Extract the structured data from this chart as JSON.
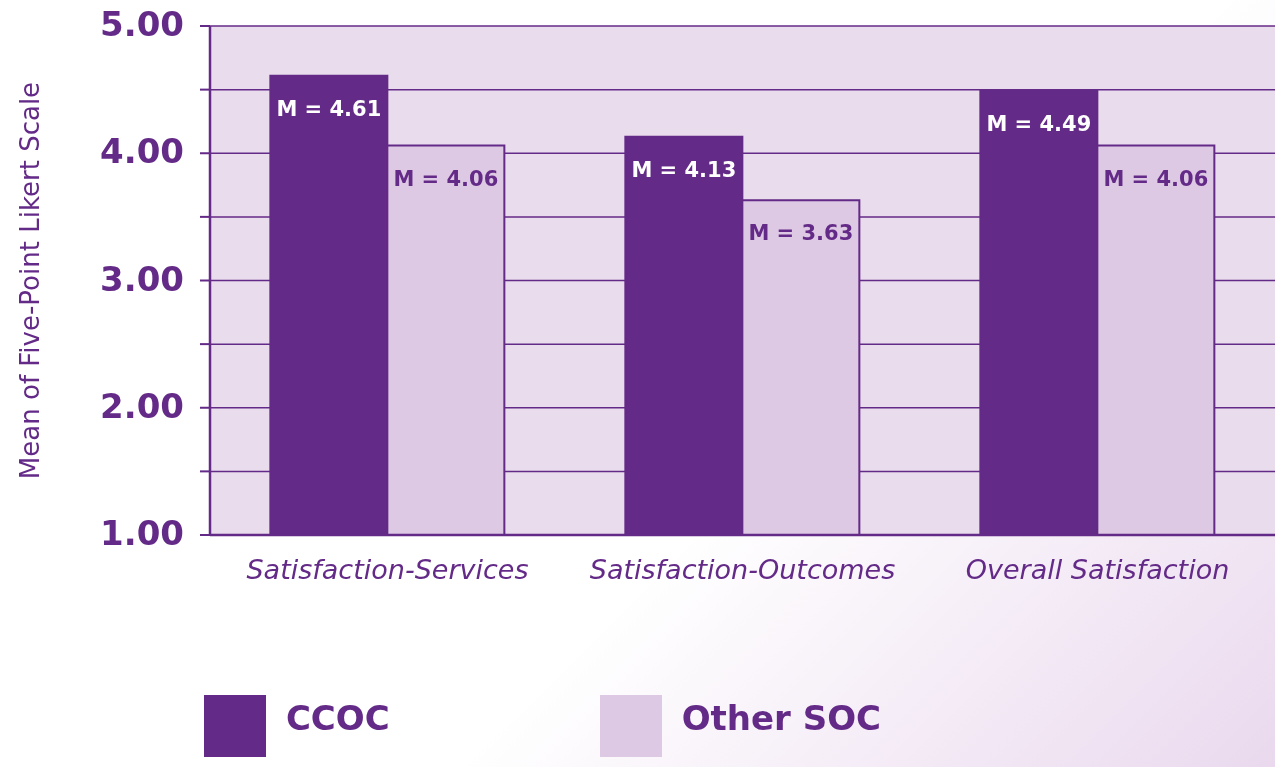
{
  "chart_data": {
    "type": "bar",
    "ylabel": "Mean of Five-Point Likert Scale",
    "categories": [
      "Satisfaction-Services",
      "Satisfaction-Outcomes",
      "Overall Satisfaction"
    ],
    "series": [
      {
        "name": "CCOC",
        "color": "#642a87",
        "values": [
          4.61,
          4.13,
          4.49
        ],
        "value_labels": [
          "M = 4.61",
          "M = 4.13",
          "M = 4.49"
        ]
      },
      {
        "name": "Other SOC",
        "color": "#ddc9e3",
        "values": [
          4.06,
          3.63,
          4.06
        ],
        "value_labels": [
          "M = 4.06",
          "M = 3.63",
          "M = 4.06"
        ]
      }
    ],
    "ylim": [
      1,
      5
    ],
    "yticks": [
      {
        "value": 1,
        "label": "1.00"
      },
      {
        "value": 1.5,
        "label": null
      },
      {
        "value": 2,
        "label": "2.00"
      },
      {
        "value": 2.5,
        "label": null
      },
      {
        "value": 3,
        "label": "3.00"
      },
      {
        "value": 3.5,
        "label": null
      },
      {
        "value": 4,
        "label": "4.00"
      },
      {
        "value": 4.5,
        "label": null
      },
      {
        "value": 5,
        "label": "5.00"
      }
    ],
    "grid": "y",
    "legend": "bottom"
  }
}
